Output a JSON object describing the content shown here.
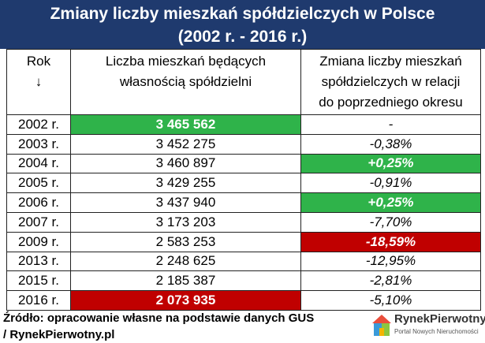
{
  "header": {
    "title_lines": [
      "Zmiany liczby mieszkań spółdzielczych w Polsce",
      "(2002 r. - 2016 r.)"
    ]
  },
  "table": {
    "columns": [
      [
        "Rok",
        "↓"
      ],
      [
        "Liczba mieszkań będących",
        "własnością spółdzielni"
      ],
      [
        "Zmiana liczby mieszkań",
        "spółdzielczych w relacji",
        "do poprzedniego okresu"
      ]
    ],
    "rows": [
      [
        "2002 r.",
        "3 465 562",
        "-"
      ],
      [
        "2003 r.",
        "3 452 275",
        "-0,38%"
      ],
      [
        "2004 r.",
        "3 460 897",
        "+0,25%"
      ],
      [
        "2005 r.",
        "3 429 255",
        "-0,91%"
      ],
      [
        "2006 r.",
        "3 437 940",
        "+0,25%"
      ],
      [
        "2007 r.",
        "3 173 203",
        "-7,70%"
      ],
      [
        "2009 r.",
        "2 583 253",
        "-18,59%"
      ],
      [
        "2013 r.",
        "2 248 625",
        "-12,95%"
      ],
      [
        "2015 r.",
        "2 185 387",
        "-2,81%"
      ],
      [
        "2016 r.",
        "2 073 935",
        "-5,10%"
      ]
    ]
  },
  "footer": {
    "source_lines": [
      "Źródło: opracowanie własne na podstawie danych GUS",
      "/ RynekPierwotny.pl"
    ],
    "logo_name": "RynekPierwotny",
    "logo_tagline": "Portal Nowych Nieruchomości"
  }
}
